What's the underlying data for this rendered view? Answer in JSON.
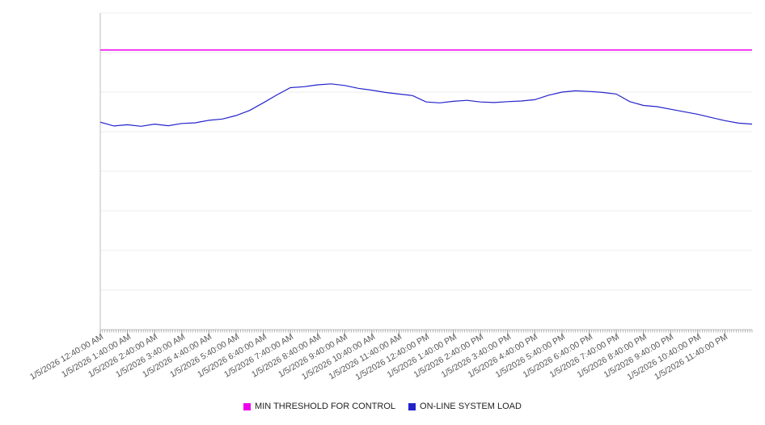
{
  "chart_data": {
    "type": "line",
    "title": "",
    "xlabel": "",
    "ylabel": "",
    "ylim": [
      0,
      100
    ],
    "grid_divisions": 8,
    "grid": true,
    "legend_position": "bottom",
    "x_start_hour": 0,
    "x_end_hour": 24,
    "points_per_hour": 2,
    "x_tick_labels": [
      "1/5/2026 12:40:00 AM",
      "1/5/2026 1:40:00 AM",
      "1/5/2026 2:40:00 AM",
      "1/5/2026 3:40:00 AM",
      "1/5/2026 4:40:00 AM",
      "1/5/2026 5:40:00 AM",
      "1/5/2026 6:40:00 AM",
      "1/5/2026 7:40:00 AM",
      "1/5/2026 8:40:00 AM",
      "1/5/2026 9:40:00 AM",
      "1/5/2026 10:40:00 AM",
      "1/5/2026 11:40:00 AM",
      "1/5/2026 12:40:00 PM",
      "1/5/2026 1:40:00 PM",
      "1/5/2026 2:40:00 PM",
      "1/5/2026 3:40:00 PM",
      "1/5/2026 4:40:00 PM",
      "1/5/2026 5:40:00 PM",
      "1/5/2026 6:40:00 PM",
      "1/5/2026 7:40:00 PM",
      "1/5/2026 8:40:00 PM",
      "1/5/2026 9:40:00 PM",
      "1/5/2026 10:40:00 PM",
      "1/5/2026 11:40:00 PM"
    ],
    "series": [
      {
        "name": "MIN THRESHOLD FOR CONTROL",
        "kind": "threshold",
        "color": "#ee00ee",
        "value": 88.3
      },
      {
        "name": "ON-LINE SYSTEM LOAD",
        "kind": "line",
        "color": "#2323cb",
        "values": [
          65.5,
          64.3,
          64.7,
          64.2,
          64.9,
          64.4,
          65.1,
          65.3,
          66.1,
          66.5,
          67.6,
          69.2,
          71.6,
          74.1,
          76.4,
          76.7,
          77.3,
          77.6,
          77.1,
          76.2,
          75.6,
          74.9,
          74.4,
          73.9,
          71.9,
          71.6,
          72.1,
          72.4,
          71.9,
          71.7,
          72.0,
          72.2,
          72.6,
          74.0,
          75.0,
          75.4,
          75.2,
          74.9,
          74.4,
          72.0,
          70.8,
          70.4,
          69.6,
          68.8,
          68.0,
          67.0,
          66.0,
          65.2,
          64.9
        ]
      }
    ],
    "colors": {
      "gridline": "#ececec",
      "axis": "#bdbdbd",
      "tick": "#999999",
      "label_text": "#555555"
    }
  }
}
